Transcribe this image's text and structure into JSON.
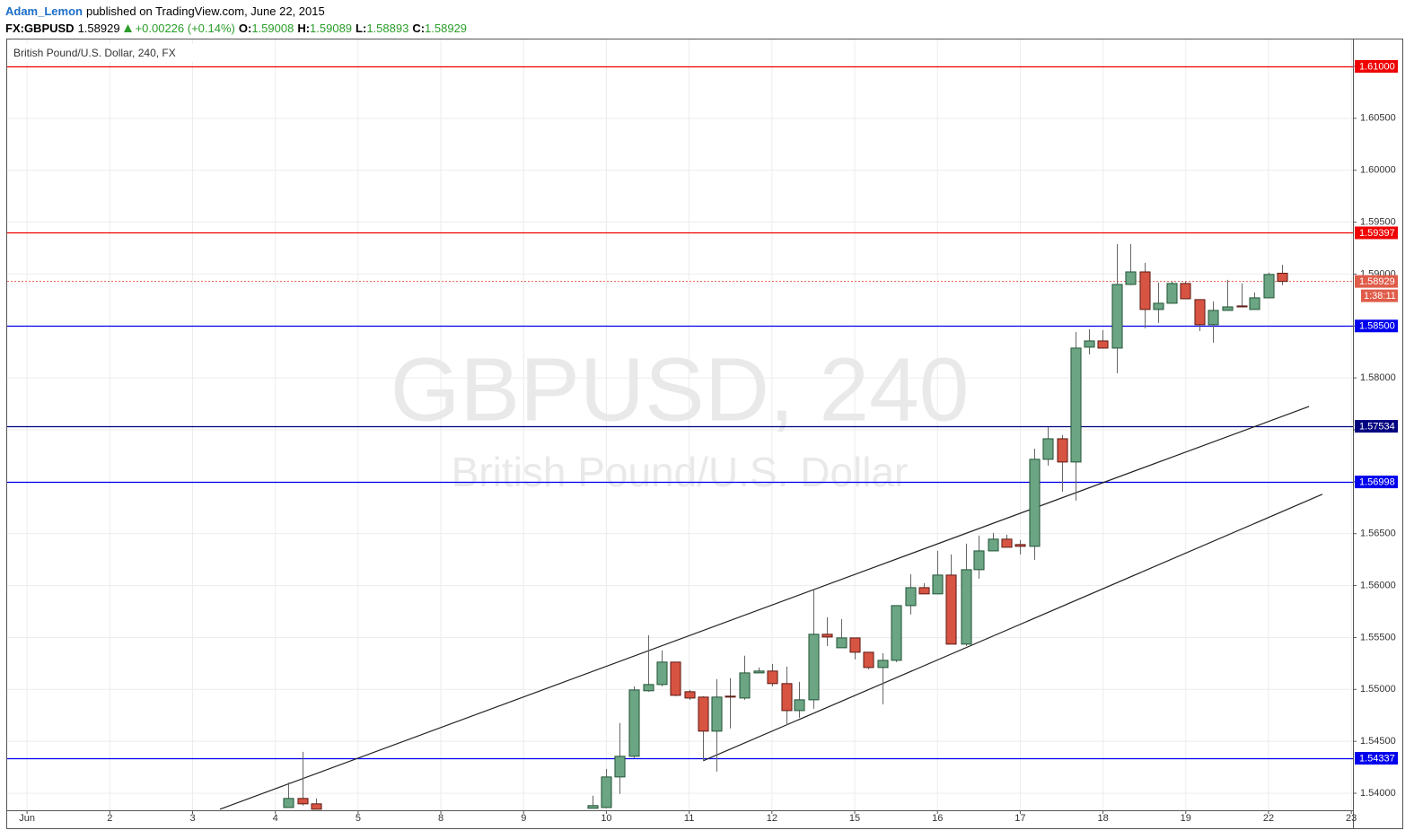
{
  "header": {
    "author": "Adam_Lemon",
    "published": "published on TradingView.com, June 22, 2015",
    "symbol": "FX:GBPUSD",
    "last": "1.58929",
    "change": "+0.00226 (+0.14%)",
    "ohlc": [
      {
        "label": "O:",
        "value": "1.59008"
      },
      {
        "label": "H:",
        "value": "1.59089"
      },
      {
        "label": "L:",
        "value": "1.58893"
      },
      {
        "label": "C:",
        "value": "1.58929"
      }
    ]
  },
  "chart_data": {
    "type": "candlestick",
    "legend": "British Pound/U.S. Dollar, 240, FX",
    "watermark": {
      "title": "GBPUSD, 240",
      "subtitle": "British Pound/U.S. Dollar"
    },
    "up_color": "#6ba583",
    "down_color": "#d75442",
    "grid": true,
    "xlim": [
      -0.24,
      16.02
    ],
    "ylim": [
      1.53836,
      1.61259
    ],
    "xticks": [
      {
        "value": 0,
        "label": "Jun"
      },
      {
        "value": 1,
        "label": "2"
      },
      {
        "value": 2,
        "label": "3"
      },
      {
        "value": 3,
        "label": "4"
      },
      {
        "value": 4,
        "label": "5"
      },
      {
        "value": 5,
        "label": "8"
      },
      {
        "value": 6,
        "label": "9"
      },
      {
        "value": 7,
        "label": "10"
      },
      {
        "value": 8,
        "label": "11"
      },
      {
        "value": 9,
        "label": "12"
      },
      {
        "value": 10,
        "label": "15"
      },
      {
        "value": 11,
        "label": "16"
      },
      {
        "value": 12,
        "label": "17"
      },
      {
        "value": 13,
        "label": "18"
      },
      {
        "value": 14,
        "label": "19"
      },
      {
        "value": 15,
        "label": "22"
      },
      {
        "value": 16,
        "label": "23"
      }
    ],
    "yticks": [
      {
        "value": 1.54,
        "label": "1.54000"
      },
      {
        "value": 1.545,
        "label": "1.54500"
      },
      {
        "value": 1.55,
        "label": "1.55000"
      },
      {
        "value": 1.555,
        "label": "1.55500"
      },
      {
        "value": 1.56,
        "label": "1.56000"
      },
      {
        "value": 1.565,
        "label": "1.56500"
      },
      {
        "value": 1.57,
        "label": "1.57000"
      },
      {
        "value": 1.575,
        "label": "1.57500"
      },
      {
        "value": 1.58,
        "label": "1.58000"
      },
      {
        "value": 1.585,
        "label": "1.58500"
      },
      {
        "value": 1.59,
        "label": "1.59000"
      },
      {
        "value": 1.595,
        "label": "1.59500"
      },
      {
        "value": 1.6,
        "label": "1.60000"
      },
      {
        "value": 1.605,
        "label": "1.60500"
      },
      {
        "value": 1.61,
        "label": "1.61000"
      }
    ],
    "x": [
      3.16,
      3.33,
      3.49,
      6.83,
      7.0,
      7.16,
      7.33,
      7.5,
      7.67,
      7.83,
      8.0,
      8.17,
      8.33,
      8.49,
      8.67,
      8.84,
      9.0,
      9.17,
      9.33,
      9.5,
      9.66,
      9.84,
      10.0,
      10.16,
      10.34,
      10.5,
      10.67,
      10.84,
      11.0,
      11.16,
      11.34,
      11.5,
      11.67,
      11.83,
      12.0,
      12.17,
      12.33,
      12.51,
      12.67,
      12.83,
      12.99,
      13.17,
      13.33,
      13.5,
      13.67,
      13.83,
      13.99,
      14.17,
      14.33,
      14.5,
      14.67,
      14.83,
      15.0,
      15.16
    ],
    "open": [
      1.53863,
      1.5395,
      1.53898,
      1.53855,
      1.53863,
      1.54157,
      1.54356,
      1.54987,
      1.55047,
      1.55263,
      1.54978,
      1.54926,
      1.54598,
      1.54935,
      1.54917,
      1.55159,
      1.55177,
      1.55056,
      1.54796,
      1.549,
      1.55531,
      1.55401,
      1.55496,
      1.55358,
      1.55211,
      1.5528,
      1.55807,
      1.5598,
      1.5592,
      1.56101,
      1.55436,
      1.56153,
      1.56334,
      1.56447,
      1.56395,
      1.56378,
      1.57216,
      1.57414,
      1.5719,
      1.58296,
      1.58356,
      1.58287,
      1.589,
      1.59021,
      1.58659,
      1.58719,
      1.58909,
      1.58754,
      1.58512,
      1.5865,
      1.58693,
      1.58659,
      1.58771,
      1.59008
    ],
    "high": [
      1.54105,
      1.54399,
      1.5395,
      1.53976,
      1.54235,
      1.54676,
      1.5503,
      1.55522,
      1.55375,
      1.55263,
      1.54995,
      1.54935,
      1.55099,
      1.55108,
      1.55324,
      1.55211,
      1.55246,
      1.5522,
      1.55073,
      1.55963,
      1.55695,
      1.55678,
      1.55496,
      1.55358,
      1.55349,
      1.55807,
      1.5611,
      1.56023,
      1.56334,
      1.563,
      1.56404,
      1.56481,
      1.56507,
      1.5649,
      1.56438,
      1.57319,
      1.57527,
      1.57449,
      1.58443,
      1.58468,
      1.5846,
      1.59289,
      1.59289,
      1.59108,
      1.58918,
      1.58926,
      1.58926,
      1.58754,
      1.58736,
      1.58944,
      1.58909,
      1.58823,
      1.59013,
      1.59089
    ],
    "low": [
      1.53863,
      1.53881,
      1.53846,
      1.53855,
      1.53855,
      1.53993,
      1.54339,
      1.54978,
      1.5503,
      1.54935,
      1.549,
      1.54313,
      1.54209,
      1.54624,
      1.549,
      1.55159,
      1.5503,
      1.54658,
      1.54727,
      1.54814,
      1.55419,
      1.55401,
      1.55289,
      1.55194,
      1.54857,
      1.55263,
      1.55721,
      1.5592,
      1.5592,
      1.55436,
      1.55419,
      1.56067,
      1.56334,
      1.56369,
      1.563,
      1.56248,
      1.57155,
      1.56905,
      1.56818,
      1.58227,
      1.58287,
      1.58045,
      1.58892,
      1.58477,
      1.58529,
      1.58719,
      1.58762,
      1.58451,
      1.58339,
      1.5865,
      1.58684,
      1.58659,
      1.58771,
      1.58893
    ],
    "close": [
      1.5395,
      1.53898,
      1.53846,
      1.53881,
      1.54157,
      1.54356,
      1.54995,
      1.55047,
      1.55263,
      1.54943,
      1.54917,
      1.54598,
      1.54926,
      1.54926,
      1.55159,
      1.55177,
      1.55056,
      1.54796,
      1.549,
      1.55531,
      1.55505,
      1.55496,
      1.55358,
      1.55211,
      1.5528,
      1.55807,
      1.5598,
      1.5592,
      1.56101,
      1.55436,
      1.56153,
      1.56334,
      1.56447,
      1.56369,
      1.56378,
      1.57216,
      1.57414,
      1.5719,
      1.58287,
      1.58356,
      1.58287,
      1.589,
      1.59021,
      1.58659,
      1.58719,
      1.58909,
      1.58762,
      1.58512,
      1.5865,
      1.58684,
      1.58684,
      1.58771,
      1.58996,
      1.58929
    ],
    "levels": [
      {
        "value": 1.61,
        "label": "1.61000",
        "color": "#f00000"
      },
      {
        "value": 1.59397,
        "label": "1.59397",
        "color": "#f00000"
      },
      {
        "value": 1.585,
        "label": "1.58500",
        "color": "#0000ee"
      },
      {
        "value": 1.57534,
        "label": "1.57534",
        "color": "#000080"
      },
      {
        "value": 1.56998,
        "label": "1.56998",
        "color": "#0000ee"
      },
      {
        "value": 1.54337,
        "label": "1.54337",
        "color": "#0000ee"
      }
    ],
    "last_price": {
      "value": 1.58929,
      "label": "1.58929",
      "color": "#e05c4a"
    },
    "countdown": "1:38:11",
    "trendlines": [
      {
        "x": [
          2.33,
          15.49
        ],
        "y": [
          1.53846,
          1.57725
        ]
      },
      {
        "x": [
          8.17,
          15.65
        ],
        "y": [
          1.54313,
          1.56879
        ]
      }
    ]
  }
}
